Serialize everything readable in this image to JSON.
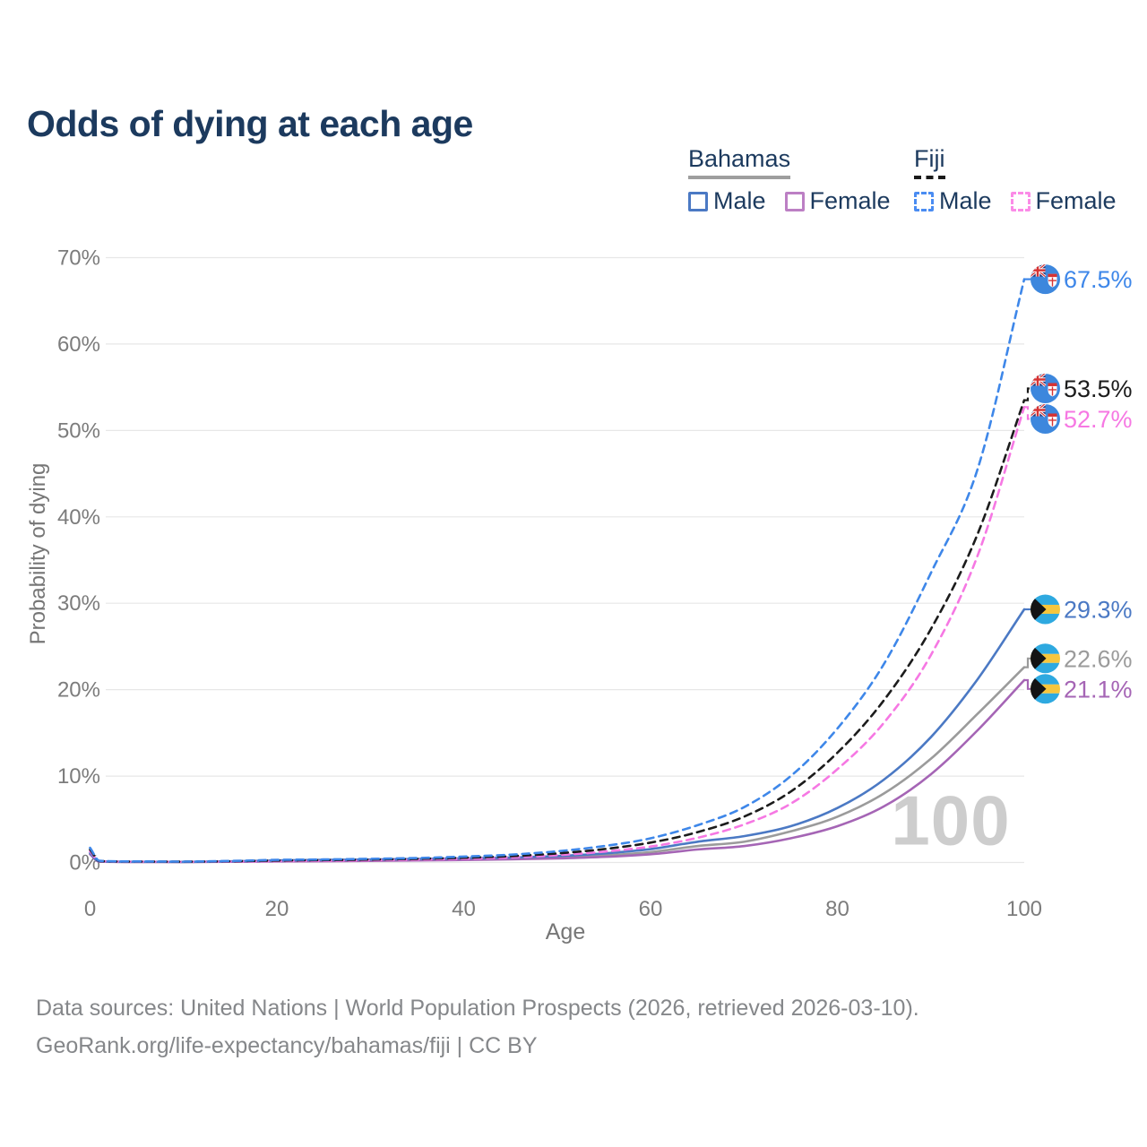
{
  "title": "Odds of dying at each age",
  "legend": {
    "groups": [
      {
        "name": "Bahamas",
        "line_style": "solid",
        "underline_color": "#9e9e9e",
        "items": [
          {
            "label": "Male",
            "color": "#4b79c4",
            "dashed": false
          },
          {
            "label": "Female",
            "color": "#bc7fc4",
            "dashed": false
          }
        ]
      },
      {
        "name": "Fiji",
        "line_style": "dashed",
        "underline_color": "#1a1a1a",
        "items": [
          {
            "label": "Male",
            "color": "#4a8cf2",
            "dashed": true
          },
          {
            "label": "Female",
            "color": "#fb8be7",
            "dashed": true
          }
        ]
      }
    ]
  },
  "chart_data": {
    "type": "line",
    "title": "Odds of dying at each age",
    "xlabel": "Age",
    "ylabel": "Probability of dying",
    "xlim": [
      0,
      100
    ],
    "ylim": [
      0,
      70
    ],
    "x_ticks": [
      0,
      20,
      40,
      60,
      80,
      100
    ],
    "y_ticks": [
      0,
      10,
      20,
      30,
      40,
      50,
      60,
      70
    ],
    "y_tick_suffix": "%",
    "grid": "horizontal",
    "legend_position": "top-right",
    "watermark": "100",
    "x": [
      0,
      1,
      5,
      10,
      15,
      20,
      25,
      30,
      35,
      40,
      45,
      50,
      55,
      60,
      65,
      70,
      75,
      80,
      85,
      90,
      95,
      100
    ],
    "series": [
      {
        "country": "Bahamas",
        "sex": "All",
        "style": "solid",
        "color": "#9b9b9b",
        "flag": "bahamas",
        "end_label": "22.6%",
        "values": [
          1.0,
          0.1,
          0.07,
          0.06,
          0.1,
          0.18,
          0.22,
          0.26,
          0.31,
          0.37,
          0.45,
          0.58,
          0.82,
          1.2,
          1.9,
          2.4,
          3.6,
          5.3,
          8.0,
          12.0,
          17.2,
          22.6
        ]
      },
      {
        "country": "Bahamas",
        "sex": "Female",
        "style": "solid",
        "color": "#a565b5",
        "flag": "bahamas",
        "end_label": "21.1%",
        "values": [
          0.95,
          0.09,
          0.06,
          0.05,
          0.08,
          0.12,
          0.15,
          0.19,
          0.24,
          0.29,
          0.36,
          0.47,
          0.65,
          0.95,
          1.5,
          1.9,
          2.8,
          4.2,
          6.5,
          10.2,
          15.3,
          21.1
        ]
      },
      {
        "country": "Bahamas",
        "sex": "Male",
        "style": "solid",
        "color": "#4b79c4",
        "flag": "bahamas",
        "end_label": "29.3%",
        "values": [
          1.1,
          0.12,
          0.08,
          0.07,
          0.13,
          0.24,
          0.3,
          0.34,
          0.4,
          0.48,
          0.58,
          0.75,
          1.05,
          1.55,
          2.4,
          3.05,
          4.2,
          6.3,
          9.6,
          14.5,
          21.2,
          29.3
        ]
      },
      {
        "country": "Fiji",
        "sex": "Female",
        "style": "dashed",
        "color": "#f678e3",
        "flag": "fiji",
        "end_label": "52.7%",
        "values": [
          1.3,
          0.15,
          0.09,
          0.08,
          0.11,
          0.16,
          0.2,
          0.26,
          0.34,
          0.44,
          0.58,
          0.85,
          1.25,
          1.85,
          2.85,
          4.4,
          6.8,
          10.8,
          16.2,
          24.0,
          35.5,
          52.7
        ]
      },
      {
        "country": "Fiji",
        "sex": "All",
        "style": "dashed",
        "color": "#1c1c1c",
        "flag": "fiji",
        "end_label": "53.5%",
        "values": [
          1.5,
          0.17,
          0.1,
          0.09,
          0.14,
          0.23,
          0.28,
          0.34,
          0.43,
          0.55,
          0.73,
          1.05,
          1.55,
          2.3,
          3.5,
          5.3,
          8.2,
          12.7,
          18.8,
          27.0,
          38.0,
          53.5
        ]
      },
      {
        "country": "Fiji",
        "sex": "Male",
        "style": "dashed",
        "color": "#3e87e9",
        "flag": "fiji",
        "end_label": "67.5%",
        "values": [
          1.7,
          0.2,
          0.12,
          0.1,
          0.18,
          0.3,
          0.35,
          0.42,
          0.52,
          0.68,
          0.9,
          1.3,
          1.9,
          2.8,
          4.3,
          6.4,
          10.0,
          15.5,
          23.0,
          33.5,
          45.5,
          67.5
        ]
      }
    ]
  },
  "footer": {
    "line1": "Data sources: United Nations | World Population Prospects (2026, retrieved 2026-03-10).",
    "line2": "GeoRank.org/life-expectancy/bahamas/fiji | CC BY"
  }
}
